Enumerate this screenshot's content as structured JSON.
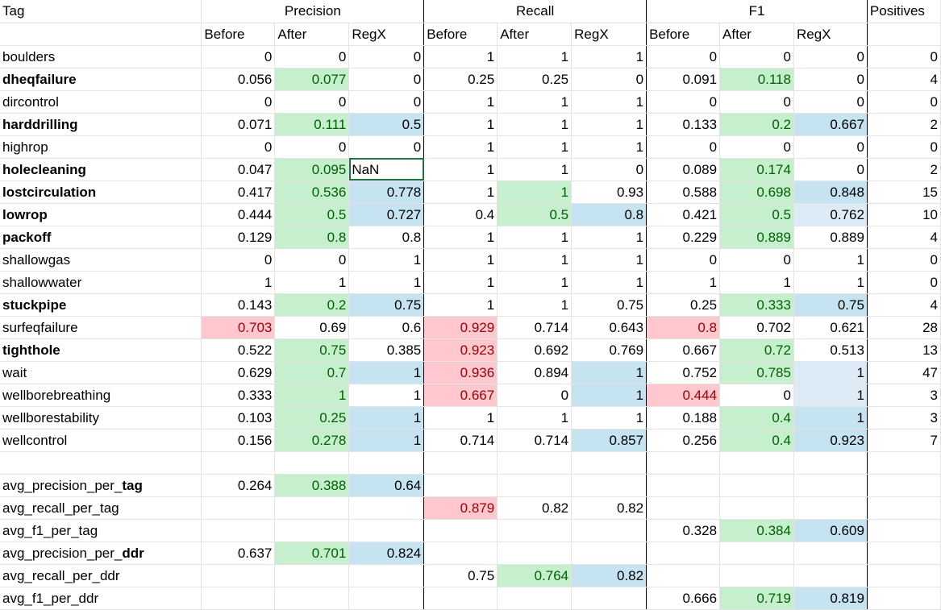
{
  "header": {
    "tag_label": "Tag",
    "precision": "Precision",
    "recall": "Recall",
    "f1": "F1",
    "positives": "Positives",
    "sub": [
      "Before",
      "After",
      "RegX"
    ]
  },
  "rows": [
    {
      "tag": "boulders",
      "bold": false,
      "cells": [
        "0",
        "0",
        "0",
        "1",
        "1",
        "1",
        "0",
        "0",
        "0",
        "0"
      ],
      "styles": [
        "",
        "",
        "",
        "",
        "",
        "",
        "",
        "",
        "",
        ""
      ]
    },
    {
      "tag": "dheqfailure",
      "bold": true,
      "cells": [
        "0.056",
        "0.077",
        "0",
        "0.25",
        "0.25",
        "0",
        "0.091",
        "0.118",
        "0",
        "4"
      ],
      "styles": [
        "",
        "g",
        "",
        "",
        "",
        "",
        "",
        "g",
        "",
        ""
      ]
    },
    {
      "tag": "dircontrol",
      "bold": false,
      "cells": [
        "0",
        "0",
        "0",
        "1",
        "1",
        "1",
        "0",
        "0",
        "0",
        "0"
      ],
      "styles": [
        "",
        "",
        "",
        "",
        "",
        "",
        "",
        "",
        "",
        ""
      ]
    },
    {
      "tag": "harddrilling",
      "bold": true,
      "cells": [
        "0.071",
        "0.111",
        "0.5",
        "1",
        "1",
        "1",
        "0.133",
        "0.2",
        "0.667",
        "2"
      ],
      "styles": [
        "",
        "g",
        "b",
        "",
        "",
        "",
        "",
        "g",
        "b",
        ""
      ]
    },
    {
      "tag": "highrop",
      "bold": false,
      "cells": [
        "0",
        "0",
        "0",
        "1",
        "1",
        "1",
        "0",
        "0",
        "0",
        "0"
      ],
      "styles": [
        "",
        "",
        "",
        "",
        "",
        "",
        "",
        "",
        "",
        ""
      ]
    },
    {
      "tag": "holecleaning",
      "bold": true,
      "cells": [
        "0.047",
        "0.095",
        "NaN",
        "1",
        "1",
        "0",
        "0.089",
        "0.174",
        "0",
        "2"
      ],
      "styles": [
        "",
        "g",
        "sel",
        "",
        "",
        "",
        "",
        "g",
        "",
        ""
      ]
    },
    {
      "tag": "lostcirculation",
      "bold": true,
      "cells": [
        "0.417",
        "0.536",
        "0.778",
        "1",
        "1",
        "0.93",
        "0.588",
        "0.698",
        "0.848",
        "15"
      ],
      "styles": [
        "",
        "g",
        "b",
        "",
        "g",
        "",
        "",
        "g",
        "b",
        ""
      ]
    },
    {
      "tag": "lowrop",
      "bold": true,
      "cells": [
        "0.444",
        "0.5",
        "0.727",
        "0.4",
        "0.5",
        "0.8",
        "0.421",
        "0.5",
        "0.762",
        "10"
      ],
      "styles": [
        "",
        "g",
        "b",
        "",
        "g",
        "b",
        "",
        "g",
        "lb",
        ""
      ]
    },
    {
      "tag": "packoff",
      "bold": true,
      "cells": [
        "0.129",
        "0.8",
        "0.8",
        "1",
        "1",
        "1",
        "0.229",
        "0.889",
        "0.889",
        "4"
      ],
      "styles": [
        "",
        "g",
        "",
        "",
        "",
        "",
        "",
        "g",
        "",
        ""
      ]
    },
    {
      "tag": "shallowgas",
      "bold": false,
      "cells": [
        "0",
        "0",
        "1",
        "1",
        "1",
        "1",
        "0",
        "0",
        "1",
        "0"
      ],
      "styles": [
        "",
        "",
        "",
        "",
        "",
        "",
        "",
        "",
        "",
        ""
      ]
    },
    {
      "tag": "shallowwater",
      "bold": false,
      "cells": [
        "1",
        "1",
        "1",
        "1",
        "1",
        "1",
        "1",
        "1",
        "1",
        "0"
      ],
      "styles": [
        "",
        "",
        "",
        "",
        "",
        "",
        "",
        "",
        "",
        ""
      ]
    },
    {
      "tag": "stuckpipe",
      "bold": true,
      "cells": [
        "0.143",
        "0.2",
        "0.75",
        "1",
        "1",
        "0.75",
        "0.25",
        "0.333",
        "0.75",
        "4"
      ],
      "styles": [
        "",
        "g",
        "b",
        "",
        "",
        "",
        "",
        "g",
        "b",
        ""
      ]
    },
    {
      "tag": "surfeqfailure",
      "bold": false,
      "cells": [
        "0.703",
        "0.69",
        "0.6",
        "0.929",
        "0.714",
        "0.643",
        "0.8",
        "0.702",
        "0.621",
        "28"
      ],
      "styles": [
        "r",
        "",
        "",
        "r",
        "",
        "",
        "r",
        "",
        "",
        ""
      ]
    },
    {
      "tag": "tighthole",
      "bold": true,
      "cells": [
        "0.522",
        "0.75",
        "0.385",
        "0.923",
        "0.692",
        "0.769",
        "0.667",
        "0.72",
        "0.513",
        "13"
      ],
      "styles": [
        "",
        "g",
        "",
        "r",
        "",
        "",
        "",
        "g",
        "",
        ""
      ]
    },
    {
      "tag": "wait",
      "bold": false,
      "cells": [
        "0.629",
        "0.7",
        "1",
        "0.936",
        "0.894",
        "1",
        "0.752",
        "0.785",
        "1",
        "47"
      ],
      "styles": [
        "",
        "g",
        "b",
        "r",
        "",
        "b",
        "",
        "g",
        "lb",
        ""
      ]
    },
    {
      "tag": "wellborebreathing",
      "bold": false,
      "cells": [
        "0.333",
        "1",
        "1",
        "0.667",
        "0",
        "1",
        "0.444",
        "0",
        "1",
        "3"
      ],
      "styles": [
        "",
        "g",
        "",
        "r",
        "",
        "b",
        "r",
        "",
        "lb",
        ""
      ]
    },
    {
      "tag": "wellborestability",
      "bold": false,
      "cells": [
        "0.103",
        "0.25",
        "1",
        "1",
        "1",
        "1",
        "0.188",
        "0.4",
        "1",
        "3"
      ],
      "styles": [
        "",
        "g",
        "b",
        "",
        "",
        "",
        "",
        "g",
        "b",
        ""
      ]
    },
    {
      "tag": "wellcontrol",
      "bold": false,
      "cells": [
        "0.156",
        "0.278",
        "1",
        "0.714",
        "0.714",
        "0.857",
        "0.256",
        "0.4",
        "0.923",
        "7"
      ],
      "styles": [
        "",
        "g",
        "b",
        "",
        "",
        "b",
        "",
        "g",
        "b",
        ""
      ]
    }
  ],
  "summary": [
    {
      "prefix": "avg_precision_per_",
      "suffix": "tag",
      "suffix_bold": true,
      "cells": [
        "0.264",
        "0.388",
        "0.64",
        "",
        "",
        "",
        "",
        "",
        "",
        ""
      ],
      "styles": [
        "",
        "g",
        "b",
        "",
        "",
        "",
        "",
        "",
        "",
        ""
      ]
    },
    {
      "prefix": "avg_recall_per_",
      "suffix": "tag",
      "suffix_bold": false,
      "cells": [
        "",
        "",
        "",
        "0.879",
        "0.82",
        "0.82",
        "",
        "",
        "",
        ""
      ],
      "styles": [
        "",
        "",
        "",
        "r",
        "",
        "",
        "",
        "",
        "",
        ""
      ]
    },
    {
      "prefix": "avg_f1_per_",
      "suffix": "tag",
      "suffix_bold": false,
      "cells": [
        "",
        "",
        "",
        "",
        "",
        "",
        "0.328",
        "0.384",
        "0.609",
        ""
      ],
      "styles": [
        "",
        "",
        "",
        "",
        "",
        "",
        "",
        "g",
        "b",
        ""
      ]
    },
    {
      "prefix": "avg_precision_per_",
      "suffix": "ddr",
      "suffix_bold": true,
      "cells": [
        "0.637",
        "0.701",
        "0.824",
        "",
        "",
        "",
        "",
        "",
        "",
        ""
      ],
      "styles": [
        "",
        "g",
        "b",
        "",
        "",
        "",
        "",
        "",
        "",
        ""
      ]
    },
    {
      "prefix": "avg_recall_per_",
      "suffix": "ddr",
      "suffix_bold": false,
      "cells": [
        "",
        "",
        "",
        "0.75",
        "0.764",
        "0.82",
        "",
        "",
        "",
        ""
      ],
      "styles": [
        "",
        "",
        "",
        "",
        "g",
        "b",
        "",
        "",
        "",
        ""
      ]
    },
    {
      "prefix": "avg_f1_per_",
      "suffix": "ddr",
      "suffix_bold": false,
      "cells": [
        "",
        "",
        "",
        "",
        "",
        "",
        "0.666",
        "0.719",
        "0.819",
        ""
      ],
      "styles": [
        "",
        "",
        "",
        "",
        "",
        "",
        "",
        "g",
        "b",
        ""
      ]
    }
  ],
  "colors": {
    "better_bg": "#c6efce",
    "better_text": "#006100",
    "regx_bg": "#c5e3f1",
    "worse_bg": "#ffc7ce",
    "worse_text": "#9c0006"
  }
}
